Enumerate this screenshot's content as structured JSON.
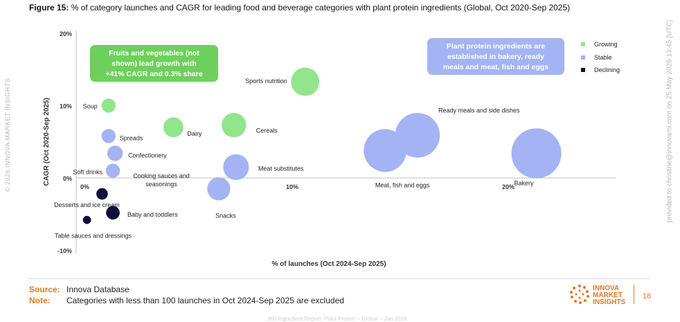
{
  "figure": {
    "label": "Figure 15:",
    "title": "% of category launches and CAGR for leading food and beverage categories with plant protein ingredients (Global, Oct 2020-Sep 2025)"
  },
  "watermark_left": "© 2026 INNOVA MARKET INSIGHTS",
  "watermark_right": "provided to christine@innovami.com on 25 May 2026 13:45 [UTC]",
  "colors": {
    "growing": "#92e58a",
    "stable": "#a4b3f3",
    "declining": "#0e0f3a",
    "brand": "#e8761e",
    "callout_green": "#6dd05c",
    "callout_blue": "#a4b3f3"
  },
  "chart_data": {
    "type": "scatter",
    "title": "",
    "xlabel": "% of launches (Oct 2024-Sep 2025)",
    "ylabel": "CAGR (Oct 2020-Sep 2025)",
    "xlim": [
      0,
      25
    ],
    "ylim": [
      -10,
      20
    ],
    "x_ticks": [
      {
        "value": 0,
        "label": "0%"
      },
      {
        "value": 10,
        "label": "10%"
      },
      {
        "value": 20,
        "label": "20%"
      }
    ],
    "y_ticks": [
      {
        "value": 20,
        "label": "20%"
      },
      {
        "value": 10,
        "label": "10%"
      },
      {
        "value": 0,
        "label": "0%"
      },
      {
        "value": -10,
        "label": "-10%"
      }
    ],
    "grid": false,
    "legend_position": "top-right",
    "legend": [
      {
        "key": "growing",
        "label": "Growing"
      },
      {
        "key": "stable",
        "label": "Stable"
      },
      {
        "key": "declining",
        "label": "Declining"
      }
    ],
    "points": [
      {
        "label": "Soup",
        "x": 1.5,
        "y": 10.0,
        "size": 1.5,
        "group": "growing"
      },
      {
        "label": "Dairy",
        "x": 4.5,
        "y": 7.0,
        "size": 3.0,
        "group": "growing"
      },
      {
        "label": "Cereals",
        "x": 7.3,
        "y": 7.3,
        "size": 4.5,
        "group": "growing"
      },
      {
        "label": "Sports nutrition",
        "x": 10.6,
        "y": 13.3,
        "size": 6.0,
        "group": "growing"
      },
      {
        "label": "Spreads",
        "x": 1.5,
        "y": 5.8,
        "size": 1.5,
        "group": "stable"
      },
      {
        "label": "Confectionery",
        "x": 1.8,
        "y": 3.4,
        "size": 1.8,
        "group": "stable"
      },
      {
        "label": "Soft drinks",
        "x": 1.7,
        "y": 1.0,
        "size": 1.5,
        "group": "stable"
      },
      {
        "label": "Cooking sauces and seasonings",
        "x": "",
        "y": "",
        "size": "",
        "group": "stable"
      },
      {
        "label": "Meat substitutes",
        "x": 7.4,
        "y": 1.5,
        "size": 5.0,
        "group": "stable"
      },
      {
        "label": "Snacks",
        "x": 6.6,
        "y": -1.5,
        "size": 4.0,
        "group": "stable"
      },
      {
        "label": "Meat, fish and eggs",
        "x": 14.3,
        "y": 3.8,
        "size": 11.0,
        "group": "stable"
      },
      {
        "label": "Ready meals and side dishes",
        "x": 15.8,
        "y": 5.9,
        "size": 12.0,
        "group": "stable"
      },
      {
        "label": "Bakery",
        "x": 21.3,
        "y": 3.4,
        "size": 15.0,
        "group": "stable"
      },
      {
        "label": "Desserts and ice cream",
        "x": 1.2,
        "y": -2.2,
        "size": 1.0,
        "group": "declining"
      },
      {
        "label": "Baby and toddlers",
        "x": 1.7,
        "y": -4.8,
        "size": 1.4,
        "group": "declining"
      },
      {
        "label": "Table sauces and dressings",
        "x": 0.5,
        "y": -5.8,
        "size": 0.5,
        "group": "declining"
      }
    ],
    "annotations": [
      {
        "key": "green_callout",
        "lines": [
          "Fruits and vegetables (not",
          "shown) lead growth with",
          "+41% CAGR and 0.3% share"
        ]
      },
      {
        "key": "blue_callout",
        "lines": [
          "Plant protein ingredients are",
          "established in bakery, ready",
          "meals and meat, fish and eggs"
        ]
      }
    ]
  },
  "footer": {
    "source_label": "Source:",
    "source_text": "Innova Database",
    "note_label": "Note:",
    "note_text": "Categories with less than 100 launches in Oct 2024-Sep 2025 are excluded",
    "brand_line1": "INNOVA",
    "brand_line2": "MARKET",
    "brand_line3": "INSIGHTS",
    "page_number": "18",
    "bottom_text": "360 Ingredient Report: Plant Protein – Global – Jan 2026"
  }
}
